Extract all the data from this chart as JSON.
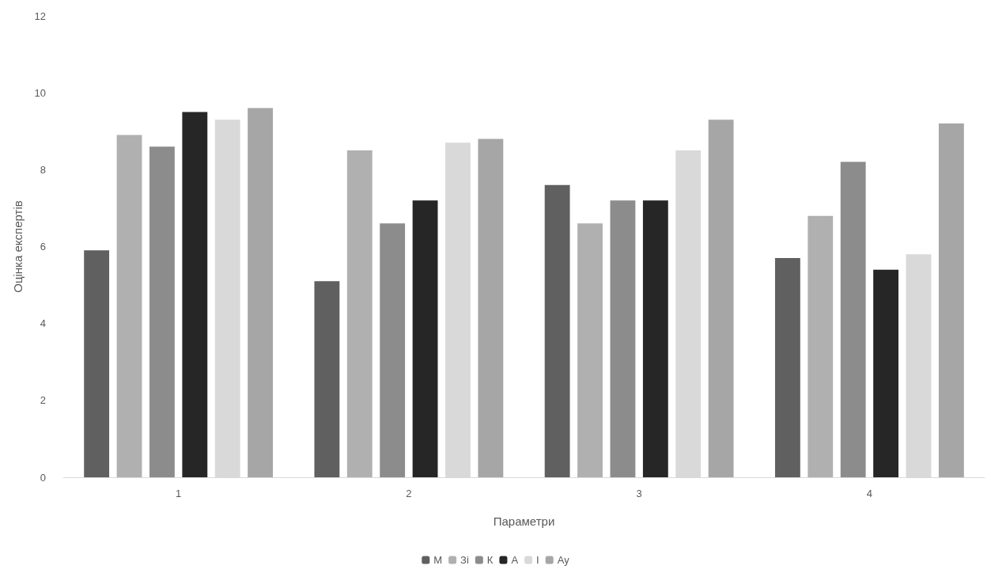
{
  "chart_data": {
    "type": "bar",
    "xlabel": "Параметри",
    "ylabel": "Оцінка експертів",
    "categories": [
      "1",
      "2",
      "3",
      "4"
    ],
    "series": [
      {
        "name": "М",
        "color": "#606060",
        "values": [
          5.9,
          5.1,
          7.6,
          5.7
        ]
      },
      {
        "name": "Зі",
        "color": "#b0b0b0",
        "values": [
          8.9,
          8.5,
          6.6,
          6.8
        ]
      },
      {
        "name": "К",
        "color": "#8c8c8c",
        "values": [
          8.6,
          6.6,
          7.2,
          8.2
        ]
      },
      {
        "name": "А",
        "color": "#262626",
        "values": [
          9.5,
          7.2,
          7.2,
          5.4
        ]
      },
      {
        "name": "І",
        "color": "#d9d9d9",
        "values": [
          9.3,
          8.7,
          8.5,
          5.8
        ]
      },
      {
        "name": "Ау",
        "color": "#a6a6a6",
        "values": [
          9.6,
          8.8,
          9.3,
          9.2
        ]
      }
    ],
    "ylim": [
      0,
      12
    ],
    "yticks": [
      0,
      2,
      4,
      6,
      8,
      10,
      12
    ],
    "grid": false,
    "legend": "bottom"
  }
}
